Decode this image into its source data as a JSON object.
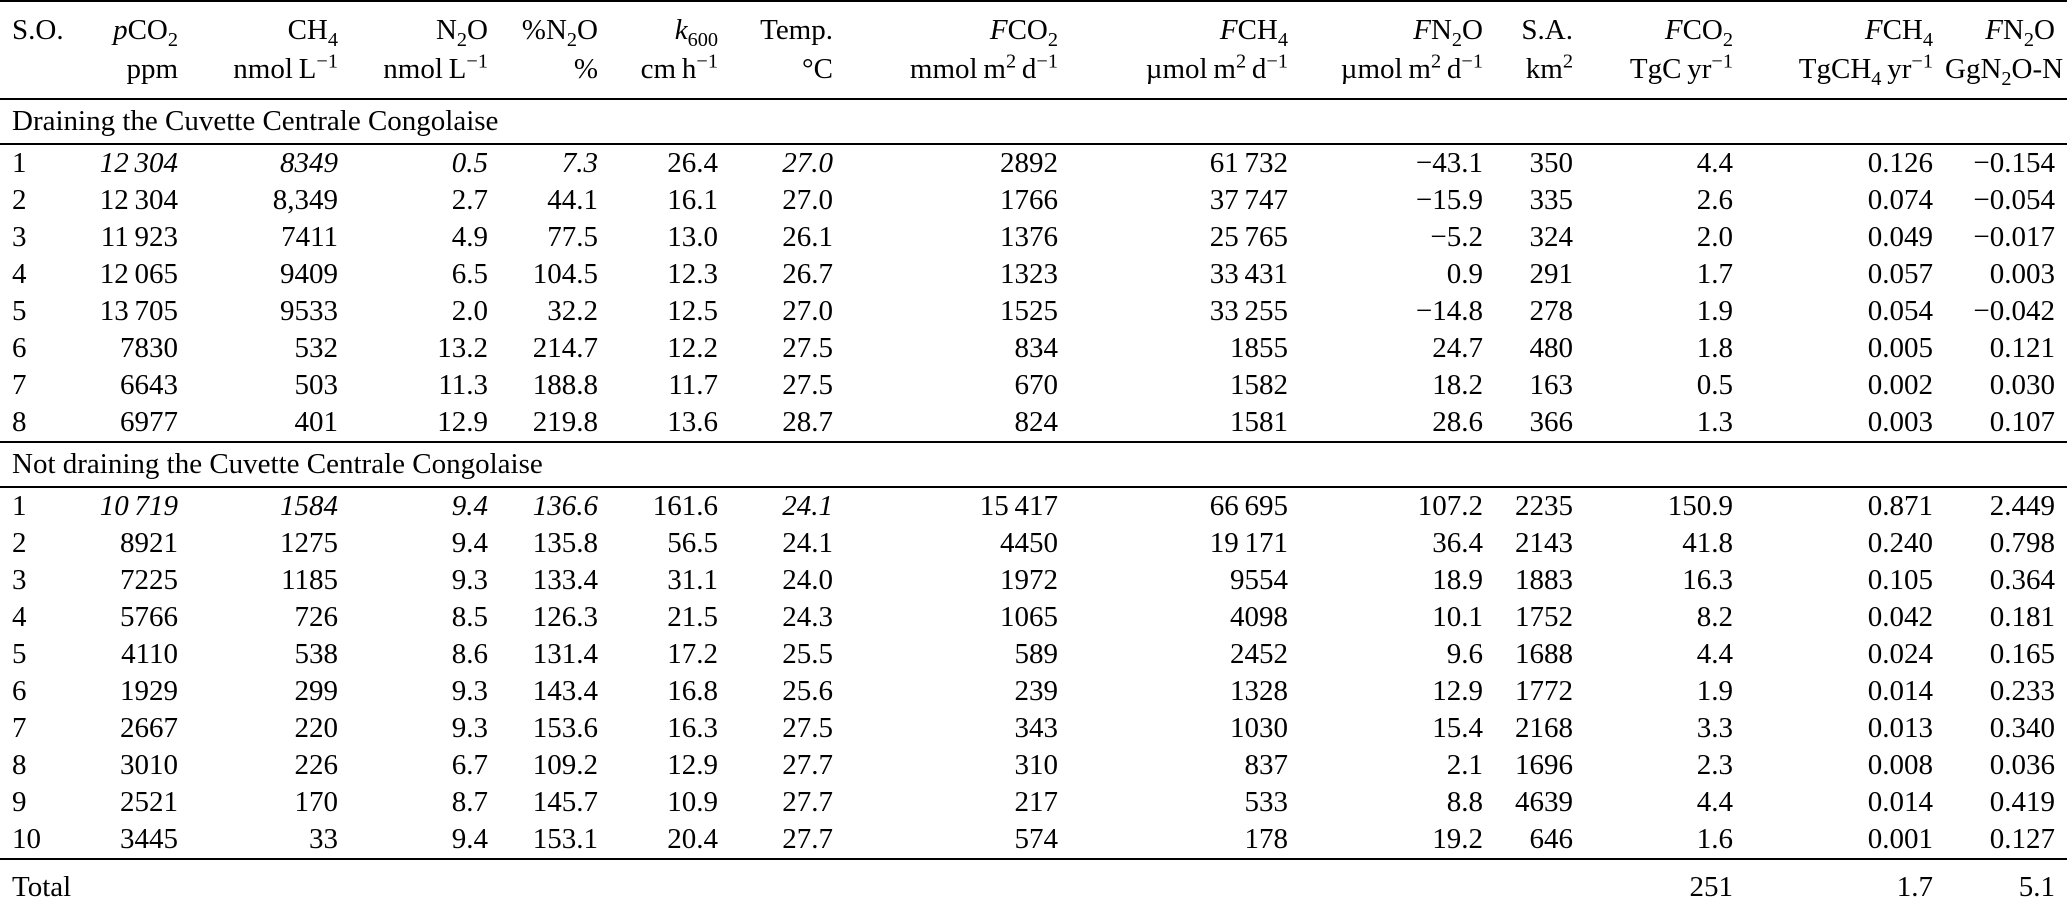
{
  "table": {
    "columns": [
      {
        "name": "S.O.",
        "units": "",
        "align": "left"
      },
      {
        "name": "<i>p</i>CO<sub>2</sub>",
        "units": "ppm"
      },
      {
        "name": "CH<sub>4</sub>",
        "units": "nmol L<sup>−1</sup>"
      },
      {
        "name": "N<sub>2</sub>O",
        "units": "nmol L<sup>−1</sup>"
      },
      {
        "name": "%N<sub>2</sub>O",
        "units": "%"
      },
      {
        "name": "<i>k</i><sub>600</sub>",
        "units": "cm h<sup>−1</sup>"
      },
      {
        "name": "Temp.",
        "units": "°C"
      },
      {
        "name": "<i>F</i>CO<sub>2</sub>",
        "units": "mmol m<sup>2</sup> d<sup>−1</sup>"
      },
      {
        "name": "<i>F</i>CH<sub>4</sub>",
        "units": "µmol m<sup>2</sup> d<sup>−1</sup>"
      },
      {
        "name": "<i>F</i>N<sub>2</sub>O",
        "units": "µmol m<sup>2</sup> d<sup>−1</sup>"
      },
      {
        "name": "S.A.",
        "units": "km<sup>2</sup>"
      },
      {
        "name": "<i>F</i>CO<sub>2</sub>",
        "units": "TgC yr<sup>−1</sup>"
      },
      {
        "name": "<i>F</i>CH<sub>4</sub>",
        "units": "TgCH<sub>4</sub> yr<sup>−1</sup>"
      },
      {
        "name": "<i>F</i>N<sub>2</sub>O",
        "units": "GgN<sub>2</sub>O-N yr<sup>−1</sup>"
      }
    ],
    "sections": [
      {
        "title": "Draining the Cuvette Centrale Congolaise",
        "rows": [
          {
            "cells": [
              "1",
              "12 304",
              "8349",
              "0.5",
              "7.3",
              "26.4",
              "27.0",
              "2892",
              "61 732",
              "−43.1",
              "350",
              "4.4",
              "0.126",
              "−0.154"
            ],
            "italic_cols": [
              1,
              2,
              3,
              4,
              6
            ]
          },
          {
            "cells": [
              "2",
              "12 304",
              "8,349",
              "2.7",
              "44.1",
              "16.1",
              "27.0",
              "1766",
              "37 747",
              "−15.9",
              "335",
              "2.6",
              "0.074",
              "−0.054"
            ]
          },
          {
            "cells": [
              "3",
              "11 923",
              "7411",
              "4.9",
              "77.5",
              "13.0",
              "26.1",
              "1376",
              "25 765",
              "−5.2",
              "324",
              "2.0",
              "0.049",
              "−0.017"
            ]
          },
          {
            "cells": [
              "4",
              "12 065",
              "9409",
              "6.5",
              "104.5",
              "12.3",
              "26.7",
              "1323",
              "33 431",
              "0.9",
              "291",
              "1.7",
              "0.057",
              "0.003"
            ]
          },
          {
            "cells": [
              "5",
              "13 705",
              "9533",
              "2.0",
              "32.2",
              "12.5",
              "27.0",
              "1525",
              "33 255",
              "−14.8",
              "278",
              "1.9",
              "0.054",
              "−0.042"
            ]
          },
          {
            "cells": [
              "6",
              "7830",
              "532",
              "13.2",
              "214.7",
              "12.2",
              "27.5",
              "834",
              "1855",
              "24.7",
              "480",
              "1.8",
              "0.005",
              "0.121"
            ]
          },
          {
            "cells": [
              "7",
              "6643",
              "503",
              "11.3",
              "188.8",
              "11.7",
              "27.5",
              "670",
              "1582",
              "18.2",
              "163",
              "0.5",
              "0.002",
              "0.030"
            ]
          },
          {
            "cells": [
              "8",
              "6977",
              "401",
              "12.9",
              "219.8",
              "13.6",
              "28.7",
              "824",
              "1581",
              "28.6",
              "366",
              "1.3",
              "0.003",
              "0.107"
            ]
          }
        ]
      },
      {
        "title": "Not draining the Cuvette Centrale Congolaise",
        "rows": [
          {
            "cells": [
              "1",
              "10 719",
              "1584",
              "9.4",
              "136.6",
              "161.6",
              "24.1",
              "15 417",
              "66 695",
              "107.2",
              "2235",
              "150.9",
              "0.871",
              "2.449"
            ],
            "italic_cols": [
              1,
              2,
              3,
              4,
              6
            ]
          },
          {
            "cells": [
              "2",
              "8921",
              "1275",
              "9.4",
              "135.8",
              "56.5",
              "24.1",
              "4450",
              "19 171",
              "36.4",
              "2143",
              "41.8",
              "0.240",
              "0.798"
            ]
          },
          {
            "cells": [
              "3",
              "7225",
              "1185",
              "9.3",
              "133.4",
              "31.1",
              "24.0",
              "1972",
              "9554",
              "18.9",
              "1883",
              "16.3",
              "0.105",
              "0.364"
            ]
          },
          {
            "cells": [
              "4",
              "5766",
              "726",
              "8.5",
              "126.3",
              "21.5",
              "24.3",
              "1065",
              "4098",
              "10.1",
              "1752",
              "8.2",
              "0.042",
              "0.181"
            ]
          },
          {
            "cells": [
              "5",
              "4110",
              "538",
              "8.6",
              "131.4",
              "17.2",
              "25.5",
              "589",
              "2452",
              "9.6",
              "1688",
              "4.4",
              "0.024",
              "0.165"
            ]
          },
          {
            "cells": [
              "6",
              "1929",
              "299",
              "9.3",
              "143.4",
              "16.8",
              "25.6",
              "239",
              "1328",
              "12.9",
              "1772",
              "1.9",
              "0.014",
              "0.233"
            ]
          },
          {
            "cells": [
              "7",
              "2667",
              "220",
              "9.3",
              "153.6",
              "16.3",
              "27.5",
              "343",
              "1030",
              "15.4",
              "2168",
              "3.3",
              "0.013",
              "0.340"
            ]
          },
          {
            "cells": [
              "8",
              "3010",
              "226",
              "6.7",
              "109.2",
              "12.9",
              "27.7",
              "310",
              "837",
              "2.1",
              "1696",
              "2.3",
              "0.008",
              "0.036"
            ]
          },
          {
            "cells": [
              "9",
              "2521",
              "170",
              "8.7",
              "145.7",
              "10.9",
              "27.7",
              "217",
              "533",
              "8.8",
              "4639",
              "4.4",
              "0.014",
              "0.419"
            ]
          },
          {
            "cells": [
              "10",
              "3445",
              "33",
              "9.4",
              "153.1",
              "20.4",
              "27.7",
              "574",
              "178",
              "19.2",
              "646",
              "1.6",
              "0.001",
              "0.127"
            ]
          }
        ]
      }
    ],
    "total": {
      "label": "Total",
      "fco2_tg": "251",
      "fch4_tg": "1.7",
      "fn2o_gg": "5.1"
    }
  }
}
